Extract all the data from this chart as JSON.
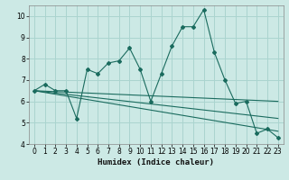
{
  "title": "",
  "xlabel": "Humidex (Indice chaleur)",
  "ylabel": "",
  "xlim": [
    -0.5,
    23.5
  ],
  "ylim": [
    4,
    10.5
  ],
  "xticks": [
    0,
    1,
    2,
    3,
    4,
    5,
    6,
    7,
    8,
    9,
    10,
    11,
    12,
    13,
    14,
    15,
    16,
    17,
    18,
    19,
    20,
    21,
    22,
    23
  ],
  "yticks": [
    4,
    5,
    6,
    7,
    8,
    9,
    10
  ],
  "background_color": "#cce9e5",
  "grid_color": "#aad4cf",
  "line_color": "#1a6b5e",
  "main_line": {
    "x": [
      0,
      1,
      2,
      3,
      4,
      5,
      6,
      7,
      8,
      9,
      10,
      11,
      12,
      13,
      14,
      15,
      16,
      17,
      18,
      19,
      20,
      21,
      22,
      23
    ],
    "y": [
      6.5,
      6.8,
      6.5,
      6.5,
      5.2,
      7.5,
      7.3,
      7.8,
      7.9,
      8.5,
      7.5,
      6.0,
      7.3,
      8.6,
      9.5,
      9.5,
      10.3,
      8.3,
      7.0,
      5.9,
      6.0,
      4.5,
      4.7,
      4.3
    ]
  },
  "trend_lines": [
    {
      "x": [
        0,
        23
      ],
      "y": [
        6.5,
        6.0
      ]
    },
    {
      "x": [
        0,
        23
      ],
      "y": [
        6.5,
        4.6
      ]
    },
    {
      "x": [
        0,
        23
      ],
      "y": [
        6.5,
        5.2
      ]
    }
  ]
}
